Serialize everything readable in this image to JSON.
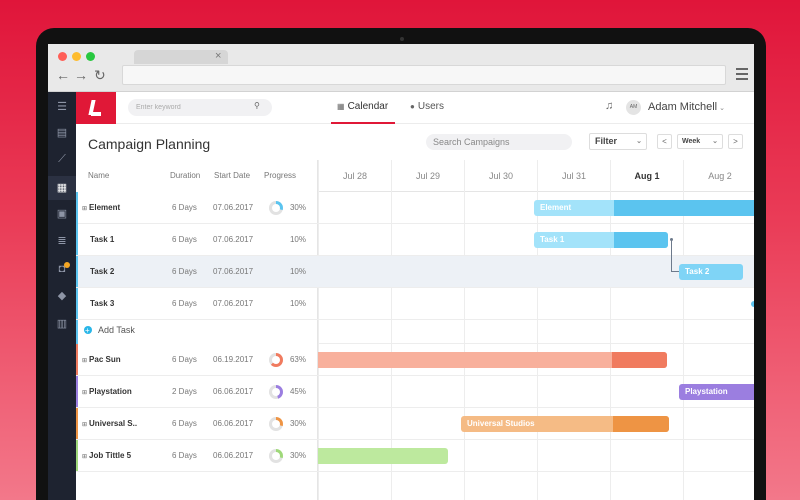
{
  "browser": {
    "tab_close": "×",
    "back": "←",
    "forward": "→",
    "reload": "↻"
  },
  "sidebar": {
    "icons": [
      "menu-icon",
      "dashboard-icon",
      "chart-icon",
      "calendar-icon",
      "image-icon",
      "list-icon",
      "notification-icon",
      "tag-icon",
      "book-icon"
    ]
  },
  "topbar": {
    "keyword_placeholder": "Enter keyword",
    "tabs": [
      {
        "label": "Calendar",
        "icon": "calendar-icon"
      },
      {
        "label": "Users",
        "icon": "user-icon"
      }
    ],
    "user": {
      "initials": "AM",
      "name": "Adam Mitchell"
    }
  },
  "page": {
    "title": "Campaign Planning",
    "search_placeholder": "Search Campaigns",
    "filter_label": "Filter",
    "view_label": "Week",
    "prev": "<",
    "next": ">"
  },
  "columns": {
    "name": "Name",
    "duration": "Duration",
    "start": "Start Date",
    "progress": "Progress"
  },
  "add_task_label": "Add Task",
  "days": [
    "Jul 28",
    "Jul 29",
    "Jul 30",
    "Jul 31",
    "Aug 1",
    "Aug 2"
  ],
  "today": "Aug 1",
  "rows": [
    {
      "name": "Element",
      "duration": "6 Days",
      "start": "07.06.2017",
      "progress": "30%",
      "group": true,
      "color": "#5bc4ef"
    },
    {
      "name": "Task 1",
      "duration": "6 Days",
      "start": "07.06.2017",
      "progress": "10%",
      "group": false,
      "color": "#5bc4ef"
    },
    {
      "name": "Task 2",
      "duration": "6 Days",
      "start": "07.06.2017",
      "progress": "10%",
      "group": false,
      "color": "#5bc4ef",
      "selected": true
    },
    {
      "name": "Task 3",
      "duration": "6 Days",
      "start": "07.06.2017",
      "progress": "10%",
      "group": false,
      "color": "#5bc4ef"
    },
    {
      "name": "Pac Sun",
      "duration": "6 Days",
      "start": "06.19.2017",
      "progress": "63%",
      "group": true,
      "color": "#f07b5f"
    },
    {
      "name": "Playstation",
      "duration": "2 Days",
      "start": "06.06.2017",
      "progress": "45%",
      "group": true,
      "color": "#9b7ee0"
    },
    {
      "name": "Universal S..",
      "duration": "6 Days",
      "start": "06.06.2017",
      "progress": "30%",
      "group": true,
      "color": "#ee9444"
    },
    {
      "name": "Job Tittle 5",
      "duration": "6 Days",
      "start": "06.06.2017",
      "progress": "30%",
      "group": true,
      "color": "#9fd87a"
    }
  ],
  "bars": [
    {
      "label": "Element",
      "color": "#a3e3fa",
      "done": "#5bc4ef"
    },
    {
      "label": "Task 1",
      "color": "#a3e3fa",
      "done": "#5bc4ef"
    },
    {
      "label": "Task 2",
      "color": "#7fd4f6",
      "done": "#7fd4f6"
    },
    {
      "label": "",
      "color": "#f8b09c",
      "done": "#f07b5f"
    },
    {
      "label": "Playstation",
      "color": "#9b7ee0",
      "done": "#9b7ee0"
    },
    {
      "label": "Universal Studios",
      "color": "#f5bb85",
      "done": "#ee9444"
    },
    {
      "label": "",
      "color": "#bde99e",
      "done": "#bde99e"
    }
  ]
}
